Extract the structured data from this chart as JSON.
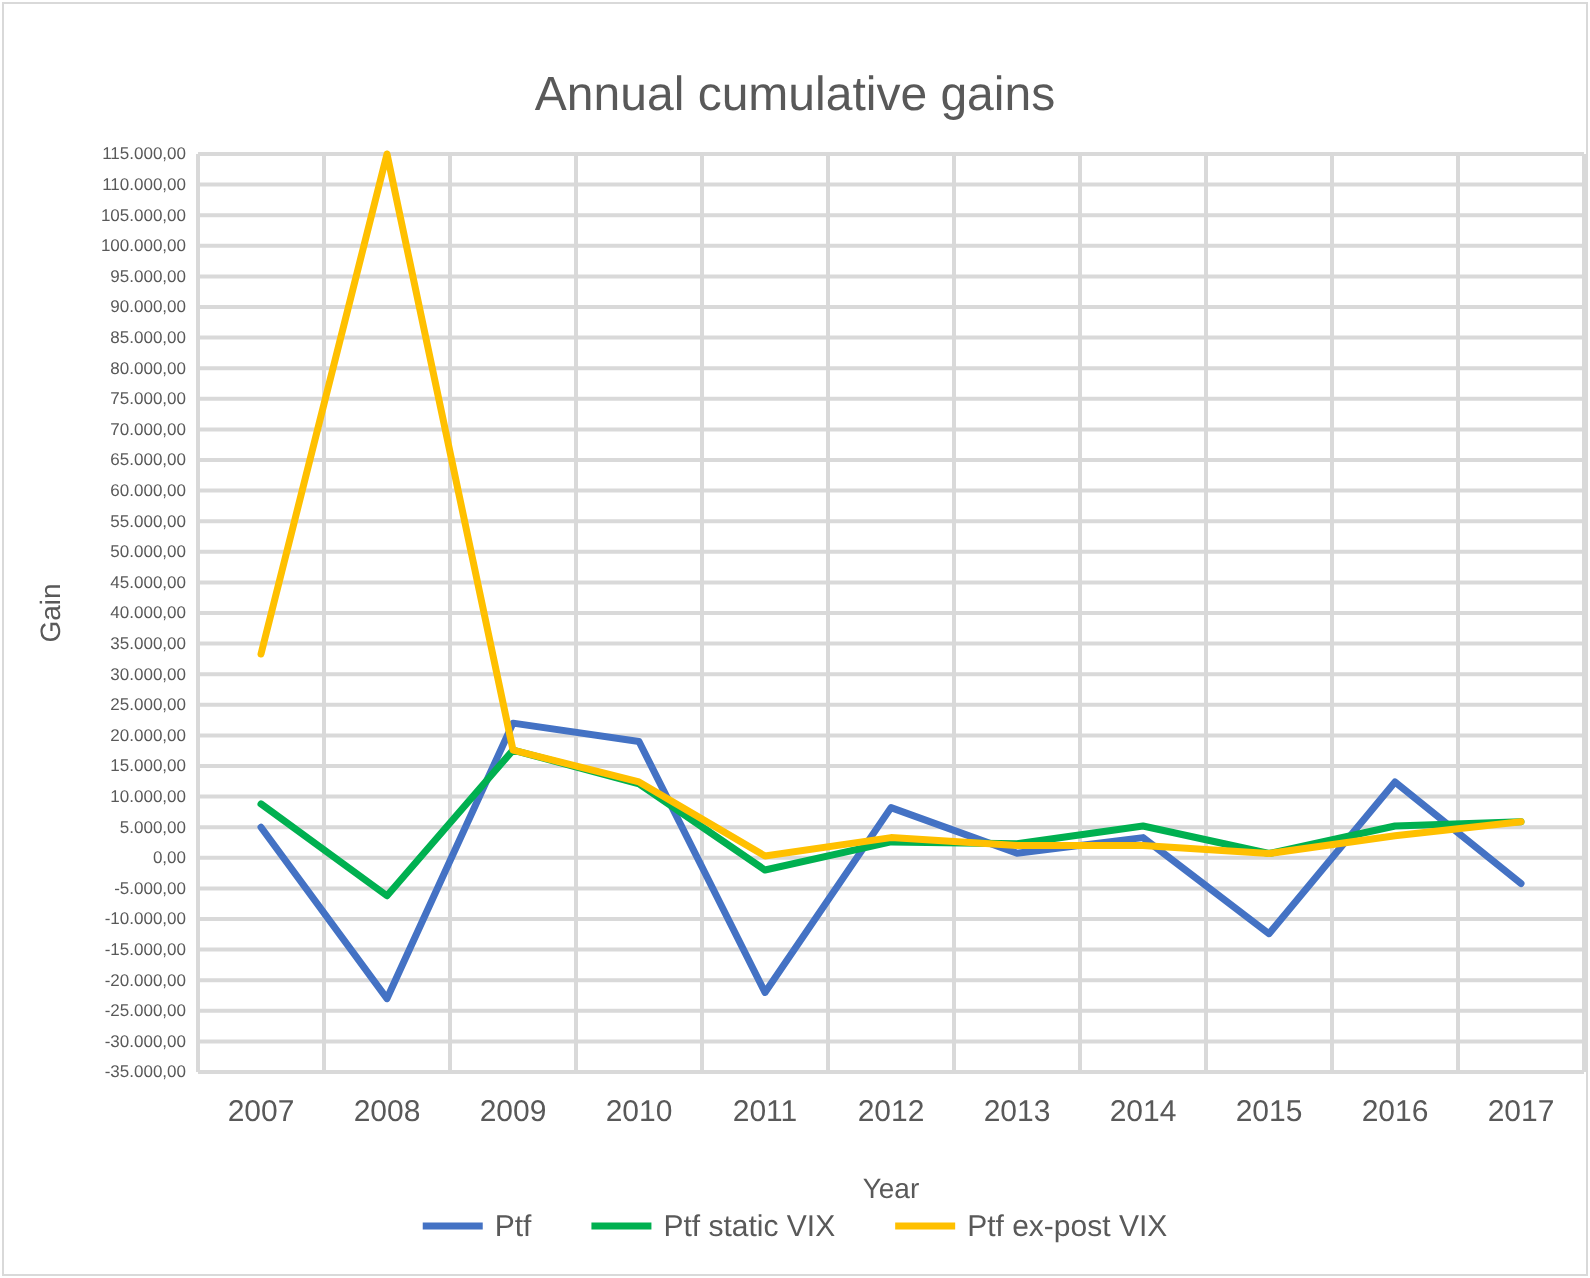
{
  "chart_data": {
    "type": "line",
    "title": "Annual cumulative gains",
    "xlabel": "Year",
    "ylabel": "Gain",
    "categories": [
      "2007",
      "2008",
      "2009",
      "2010",
      "2011",
      "2012",
      "2013",
      "2014",
      "2015",
      "2016",
      "2017"
    ],
    "series": [
      {
        "name": "Ptf",
        "color": "#4472c4",
        "values": [
          5000,
          -23000,
          22000,
          19000,
          -22000,
          8200,
          750,
          3300,
          -12400,
          12400,
          -4200
        ]
      },
      {
        "name": "Ptf static VIX",
        "color": "#00b050",
        "values": [
          8800,
          -6200,
          17600,
          12100,
          -2000,
          2600,
          2300,
          5200,
          700,
          5200,
          5900
        ]
      },
      {
        "name": "Ptf ex-post VIX",
        "color": "#ffc000",
        "values": [
          33300,
          115000,
          17600,
          12400,
          300,
          3300,
          2000,
          2000,
          700,
          3600,
          5900
        ]
      }
    ],
    "ylim": [
      -35000,
      115000
    ],
    "yticks": [
      {
        "value": 115000,
        "label": "115.000,00"
      },
      {
        "value": 110000,
        "label": "110.000,00"
      },
      {
        "value": 105000,
        "label": "105.000,00"
      },
      {
        "value": 100000,
        "label": "100.000,00"
      },
      {
        "value": 95000,
        "label": "95.000,00"
      },
      {
        "value": 90000,
        "label": "90.000,00"
      },
      {
        "value": 85000,
        "label": "85.000,00"
      },
      {
        "value": 80000,
        "label": "80.000,00"
      },
      {
        "value": 75000,
        "label": "75.000,00"
      },
      {
        "value": 70000,
        "label": "70.000,00"
      },
      {
        "value": 65000,
        "label": "65.000,00"
      },
      {
        "value": 60000,
        "label": "60.000,00"
      },
      {
        "value": 55000,
        "label": "55.000,00"
      },
      {
        "value": 50000,
        "label": "50.000,00"
      },
      {
        "value": 45000,
        "label": "45.000,00"
      },
      {
        "value": 40000,
        "label": "40.000,00"
      },
      {
        "value": 35000,
        "label": "35.000,00"
      },
      {
        "value": 30000,
        "label": "30.000,00"
      },
      {
        "value": 25000,
        "label": "25.000,00"
      },
      {
        "value": 20000,
        "label": "20.000,00"
      },
      {
        "value": 15000,
        "label": "15.000,00"
      },
      {
        "value": 10000,
        "label": "10.000,00"
      },
      {
        "value": 5000,
        "label": "5.000,00"
      },
      {
        "value": 0,
        "label": "0,00"
      },
      {
        "value": -5000,
        "label": "-5.000,00"
      },
      {
        "value": -10000,
        "label": "-10.000,00"
      },
      {
        "value": -15000,
        "label": "-15.000,00"
      },
      {
        "value": -20000,
        "label": "-20.000,00"
      },
      {
        "value": -25000,
        "label": "-25.000,00"
      },
      {
        "value": -30000,
        "label": "-30.000,00"
      },
      {
        "value": -35000,
        "label": "-35.000,00"
      }
    ],
    "grid": true,
    "legend": "bottom",
    "marker": "none",
    "line_style": "solid"
  }
}
